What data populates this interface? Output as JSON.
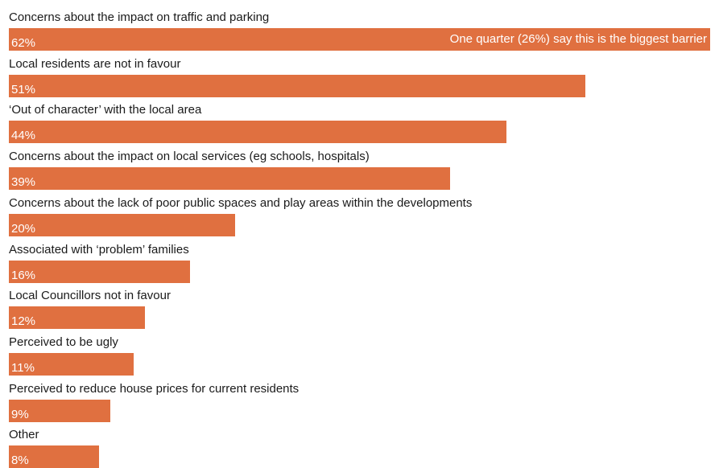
{
  "chart_data": {
    "type": "bar",
    "orientation": "horizontal",
    "unit": "%",
    "categories": [
      "Concerns about the impact on traffic and parking",
      "Local residents are not in favour",
      "‘Out of character’ with the local area",
      "Concerns about the impact on local services (eg schools, hospitals)",
      "Concerns about the lack of poor public spaces and play areas within the developments",
      "Associated with ‘problem’ families",
      "Local Councillors not in favour",
      "Perceived to be ugly",
      "Perceived to reduce house prices for current residents",
      "Other"
    ],
    "values": [
      62,
      51,
      44,
      39,
      20,
      16,
      12,
      11,
      9,
      8
    ],
    "value_labels": [
      "62%",
      "51%",
      "44%",
      "39%",
      "20%",
      "16%",
      "12%",
      "11%",
      "9%",
      "8%"
    ],
    "xlim": [
      0,
      62
    ],
    "annotation": {
      "text": "One quarter (26%) say this is the biggest barrier",
      "category_index": 0
    },
    "bar_color": "#e07040",
    "grid": false,
    "legend": "none"
  }
}
